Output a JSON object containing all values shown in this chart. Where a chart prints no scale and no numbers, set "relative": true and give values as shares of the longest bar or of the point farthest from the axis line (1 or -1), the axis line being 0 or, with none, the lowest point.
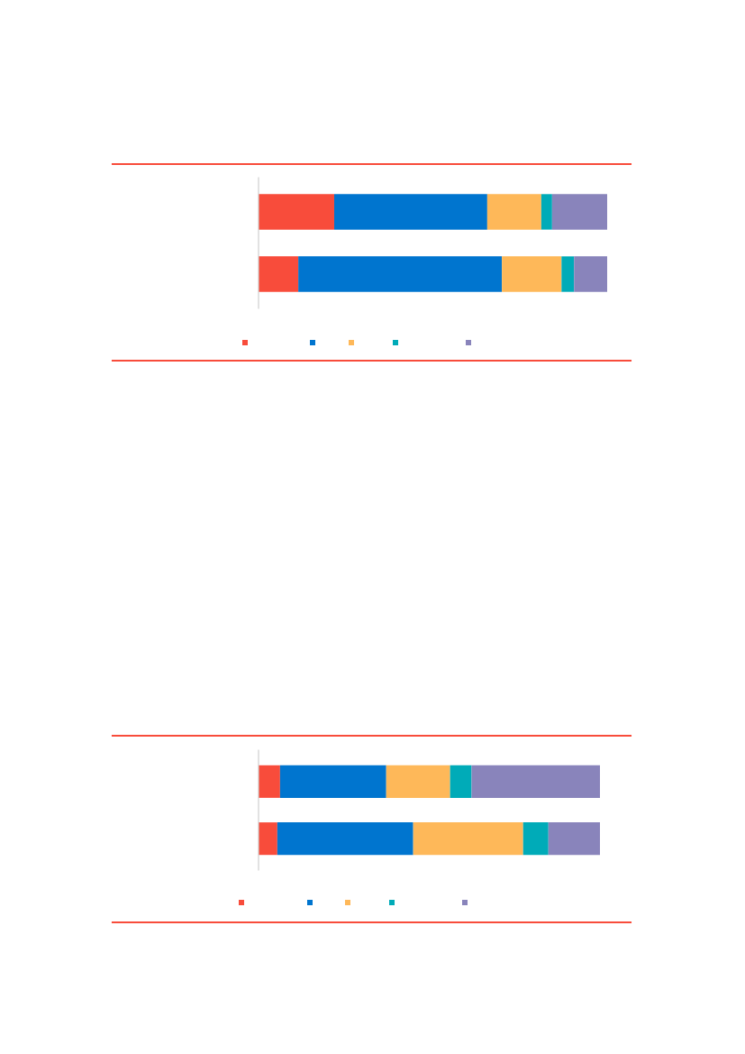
{
  "chart_data": [
    {
      "type": "bar",
      "orientation": "horizontal",
      "stacked": true,
      "relative": true,
      "categories": [
        null,
        null
      ],
      "grid": false,
      "series": [
        {
          "color": "#f84c3b",
          "values": [
            0.217,
            0.114
          ]
        },
        {
          "color": "#0075cf",
          "values": [
            0.439,
            0.584
          ]
        },
        {
          "color": "#feb859",
          "values": [
            0.155,
            0.171
          ]
        },
        {
          "color": "#00abb8",
          "values": [
            0.031,
            0.036
          ]
        },
        {
          "color": "#8984bb",
          "values": [
            0.158,
            0.095
          ]
        }
      ]
    },
    {
      "type": "bar",
      "orientation": "horizontal",
      "stacked": true,
      "relative": true,
      "categories": [
        null,
        null
      ],
      "grid": false,
      "series": [
        {
          "color": "#f84c3b",
          "values": [
            0.063,
            0.055
          ]
        },
        {
          "color": "#0075cf",
          "values": [
            0.311,
            0.398
          ]
        },
        {
          "color": "#feb859",
          "values": [
            0.187,
            0.322
          ]
        },
        {
          "color": "#00abb8",
          "values": [
            0.063,
            0.074
          ]
        },
        {
          "color": "#8984bb",
          "values": [
            0.376,
            0.151
          ]
        }
      ]
    }
  ]
}
